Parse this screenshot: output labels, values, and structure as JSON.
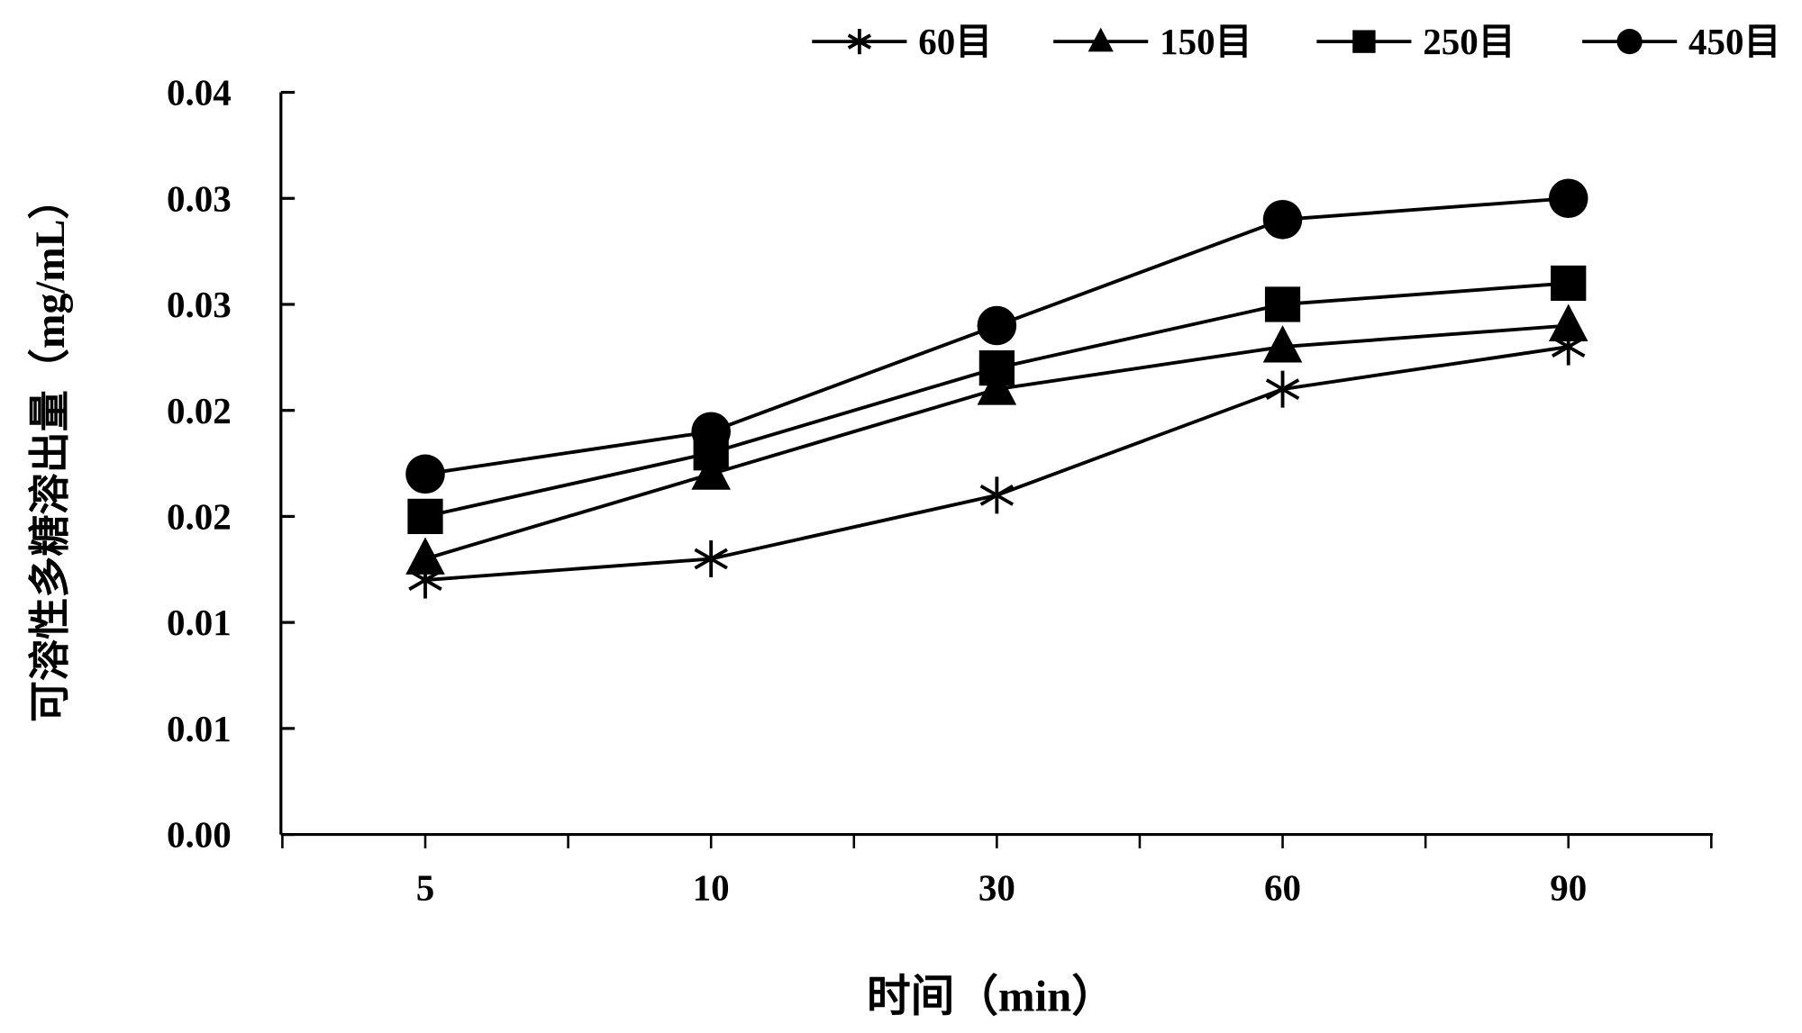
{
  "chart_data": {
    "type": "line",
    "title": "",
    "xlabel": "时间（min）",
    "ylabel": "可溶性多糖溶出量（mg/mL）",
    "categories": [
      "5",
      "10",
      "30",
      "60",
      "90"
    ],
    "ylim": [
      0,
      0.035
    ],
    "yticks": [
      0,
      0.005,
      0.01,
      0.015,
      0.02,
      0.025,
      0.03,
      0.035
    ],
    "ytick_labels": [
      "0.00",
      "0.01",
      "0.01",
      "0.02",
      "0.02",
      "0.03",
      "0.03",
      "0.04"
    ],
    "grid": false,
    "legend_position": "top-right",
    "series": [
      {
        "name": "60目",
        "marker": "asterisk",
        "values": [
          0.012,
          0.013,
          0.016,
          0.021,
          0.023
        ]
      },
      {
        "name": "150目",
        "marker": "triangle",
        "values": [
          0.013,
          0.017,
          0.021,
          0.023,
          0.024
        ]
      },
      {
        "name": "250目",
        "marker": "square",
        "values": [
          0.015,
          0.018,
          0.022,
          0.025,
          0.026
        ]
      },
      {
        "name": "450目",
        "marker": "circle",
        "values": [
          0.017,
          0.019,
          0.024,
          0.029,
          0.03
        ]
      }
    ],
    "line_color": "#000000"
  }
}
